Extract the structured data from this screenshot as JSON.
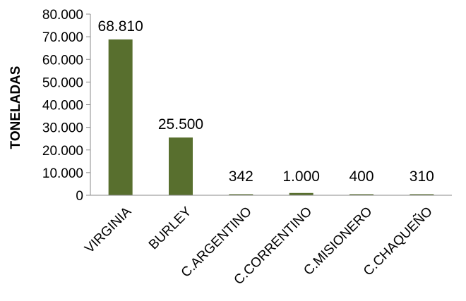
{
  "chart_data": {
    "type": "bar",
    "categories": [
      "VIRGINIA",
      "BURLEY",
      "C.ARGENTINO",
      "C.CORRENTINO",
      "C.MISIONERO",
      "C.CHAQUEÑO"
    ],
    "values": [
      68810,
      25500,
      342,
      1000,
      400,
      310
    ],
    "data_labels": [
      "68.810",
      "25.500",
      "342",
      "1.000",
      "400",
      "310"
    ],
    "ylabel": "TONELADAS",
    "xlabel": "",
    "ylim": [
      0,
      80000
    ],
    "y_ticks": [
      0,
      10000,
      20000,
      30000,
      40000,
      50000,
      60000,
      70000,
      80000
    ],
    "y_tick_labels": [
      "0",
      "10.000",
      "20.000",
      "30.000",
      "40.000",
      "50.000",
      "60.000",
      "70.000",
      "80.000"
    ],
    "bar_color": "#586f2e",
    "grid": false,
    "legend": "none"
  }
}
